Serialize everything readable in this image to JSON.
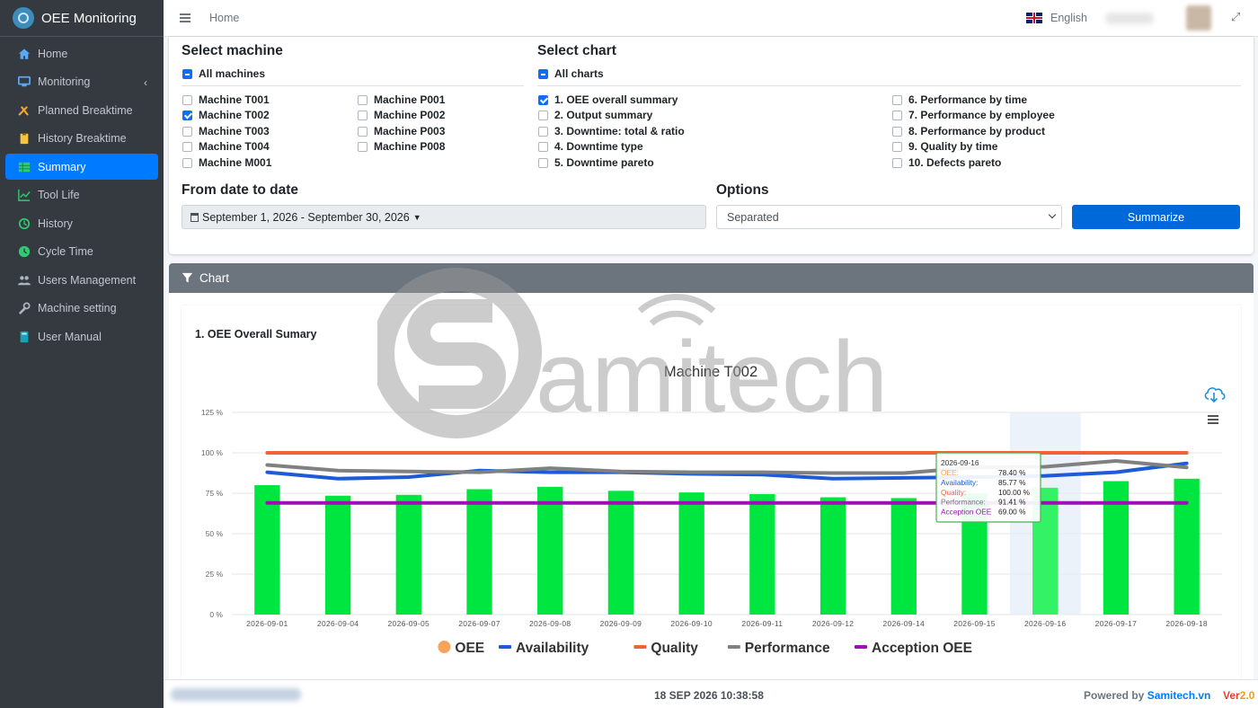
{
  "app": {
    "title": "OEE Monitoring"
  },
  "sidebar": {
    "items": [
      {
        "label": "Home",
        "icon": "home-icon"
      },
      {
        "label": "Monitoring",
        "icon": "monitor-icon"
      },
      {
        "label": "Planned Breaktime",
        "icon": "tools-icon"
      },
      {
        "label": "History Breaktime",
        "icon": "clipboard-icon"
      },
      {
        "label": "Summary",
        "icon": "table-icon"
      },
      {
        "label": "Tool Life",
        "icon": "chart-line-icon"
      },
      {
        "label": "History",
        "icon": "history-icon"
      },
      {
        "label": "Cycle Time",
        "icon": "clock-icon"
      },
      {
        "label": "Users Management",
        "icon": "users-icon"
      },
      {
        "label": "Machine setting",
        "icon": "wrench-icon"
      },
      {
        "label": "User Manual",
        "icon": "book-icon"
      }
    ]
  },
  "header": {
    "breadcrumb": "Home",
    "language": "English"
  },
  "select_machine": {
    "heading": "Select machine",
    "all_label": "All machines",
    "machines": [
      {
        "label": "Machine T001",
        "checked": false
      },
      {
        "label": "Machine T002",
        "checked": true
      },
      {
        "label": "Machine T003",
        "checked": false
      },
      {
        "label": "Machine T004",
        "checked": false
      },
      {
        "label": "Machine M001",
        "checked": false
      },
      {
        "label": "Machine P001",
        "checked": false
      },
      {
        "label": "Machine P002",
        "checked": false
      },
      {
        "label": "Machine P003",
        "checked": false
      },
      {
        "label": "Machine P008",
        "checked": false
      }
    ]
  },
  "select_chart": {
    "heading": "Select chart",
    "all_label": "All charts",
    "charts": [
      {
        "label": "1. OEE overall summary",
        "checked": true
      },
      {
        "label": "2. Output summary",
        "checked": false
      },
      {
        "label": "3. Downtime: total & ratio",
        "checked": false
      },
      {
        "label": "4. Downtime type",
        "checked": false
      },
      {
        "label": "5. Downtime pareto",
        "checked": false
      },
      {
        "label": "6. Performance by time",
        "checked": false
      },
      {
        "label": "7. Performance by employee",
        "checked": false
      },
      {
        "label": "8. Performance by product",
        "checked": false
      },
      {
        "label": "9. Quality by time",
        "checked": false
      },
      {
        "label": "10. Defects pareto",
        "checked": false
      }
    ]
  },
  "date_range": {
    "heading": "From date to date",
    "value": "September 1, 2026 - September 30, 2026"
  },
  "options": {
    "heading": "Options",
    "selected": "Separated"
  },
  "summarize_button": "Summarize",
  "chart_panel": {
    "title": "Chart",
    "section_title": "1. OEE Overall Sumary"
  },
  "watermark": "amitech",
  "chart_data": {
    "type": "bar",
    "title": "Machine T002",
    "xlabel": "",
    "ylabel": "",
    "ylim": [
      0,
      125
    ],
    "yticks": [
      0,
      25,
      50,
      75,
      100,
      125
    ],
    "y_tick_suffix": " %",
    "grid": true,
    "legend_position": "bottom",
    "categories": [
      "2026-09-01",
      "2026-09-04",
      "2026-09-05",
      "2026-09-07",
      "2026-09-08",
      "2026-09-09",
      "2026-09-10",
      "2026-09-11",
      "2026-09-12",
      "2026-09-14",
      "2026-09-15",
      "2026-09-16",
      "2026-09-17",
      "2026-09-18"
    ],
    "series": [
      {
        "name": "OEE",
        "kind": "bar",
        "color": "#00e640",
        "legend_color": "#f7a35c",
        "values": [
          80,
          73.5,
          74,
          77.5,
          79,
          76.5,
          75.5,
          74.5,
          72.5,
          72,
          75,
          78.4,
          82.5,
          84
        ]
      },
      {
        "name": "Availability",
        "kind": "line",
        "color": "#1f5bd6",
        "values": [
          88,
          84,
          85,
          89,
          88,
          88,
          87,
          86.5,
          84,
          84.5,
          85,
          85.77,
          88,
          93.5
        ]
      },
      {
        "name": "Quality",
        "kind": "line",
        "color": "#f0623a",
        "values": [
          100,
          100,
          100,
          100,
          100,
          100,
          100,
          100,
          100,
          100,
          100,
          100,
          100,
          100
        ]
      },
      {
        "name": "Performance",
        "kind": "line",
        "color": "#808080",
        "values": [
          92.5,
          89,
          88.5,
          88,
          90.5,
          88.5,
          88,
          88,
          87.5,
          87.5,
          91,
          91.41,
          95,
          91
        ]
      },
      {
        "name": "Acception OEE",
        "kind": "line",
        "color": "#9b0fb5",
        "values": [
          69,
          69,
          69,
          69,
          69,
          69,
          69,
          69,
          69,
          69,
          69,
          69,
          69,
          69
        ]
      }
    ],
    "highlight_category": "2026-09-16",
    "tooltip": {
      "date": "2026-09-16",
      "rows": [
        {
          "label": "OEE:",
          "value": "78.40 %",
          "color": "#f7a35c"
        },
        {
          "label": "Availability:",
          "value": "85.77 %",
          "color": "#1f5bd6"
        },
        {
          "label": "Quality:",
          "value": "100.00 %",
          "color": "#f0623a"
        },
        {
          "label": "Performance:",
          "value": "91.41 %",
          "color": "#6c757d"
        },
        {
          "label": "Acception OEE",
          "value": "69.00 %",
          "color": "#9b0fb5"
        }
      ]
    }
  },
  "footer": {
    "datetime": "18 SEP 2026 10:38:58",
    "powered_prefix": "Powered by ",
    "powered_link": "Samitech.vn",
    "ver_prefix": "Ver",
    "ver_number": "2.0"
  },
  "colors": {
    "sidebar": "#343a40",
    "active": "#007bff",
    "button": "#0069d9",
    "ver_prefix": "#e8402a",
    "ver_number": "#f39c12"
  }
}
